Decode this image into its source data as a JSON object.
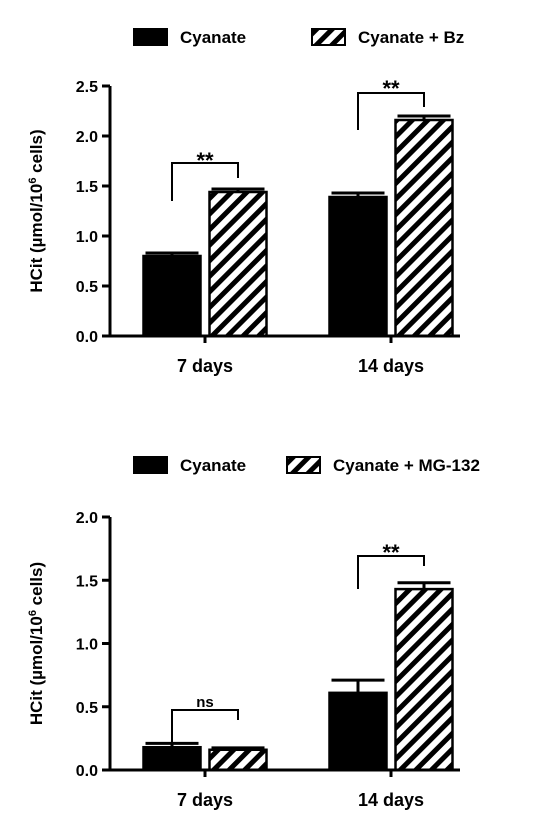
{
  "chart_data": [
    {
      "type": "bar",
      "categories": [
        "7 days",
        "14 days"
      ],
      "series": [
        {
          "name": "Cyanate",
          "values": [
            0.8,
            1.39
          ],
          "errors": [
            0.03,
            0.04
          ],
          "pattern": "solid"
        },
        {
          "name": "Cyanate + Bz",
          "values": [
            1.44,
            2.16
          ],
          "errors": [
            0.03,
            0.04
          ],
          "pattern": "hatch"
        }
      ],
      "ylabel_main": "HCit (µmol/10",
      "ylabel_sup": "6",
      "ylabel_tail": " cells)",
      "ylim": [
        0,
        2.5
      ],
      "yticks": [
        0,
        0.5,
        1.0,
        1.5,
        2.0,
        2.5
      ],
      "ytick_labels": [
        "0.0",
        "0.5",
        "1.0",
        "1.5",
        "2.0",
        "2.5"
      ],
      "annotations": [
        {
          "category": "7 days",
          "text": "**"
        },
        {
          "category": "14 days",
          "text": "**"
        }
      ],
      "legend_placement": "top"
    },
    {
      "type": "bar",
      "categories": [
        "7 days",
        "14 days"
      ],
      "series": [
        {
          "name": "Cyanate",
          "values": [
            0.18,
            0.61
          ],
          "errors": [
            0.03,
            0.1
          ],
          "pattern": "solid"
        },
        {
          "name": "Cyanate + MG-132",
          "values": [
            0.16,
            1.43
          ],
          "errors": [
            0.015,
            0.05
          ],
          "pattern": "hatch"
        }
      ],
      "ylabel_main": "HCit (µmol/10",
      "ylabel_sup": "6",
      "ylabel_tail": " cells)",
      "ylim": [
        0,
        2.0
      ],
      "yticks": [
        0,
        0.5,
        1.0,
        1.5,
        2.0
      ],
      "ytick_labels": [
        "0.0",
        "0.5",
        "1.0",
        "1.5",
        "2.0"
      ],
      "annotations": [
        {
          "category": "7 days",
          "text": "ns"
        },
        {
          "category": "14 days",
          "text": "**"
        }
      ],
      "legend_placement": "top"
    }
  ]
}
